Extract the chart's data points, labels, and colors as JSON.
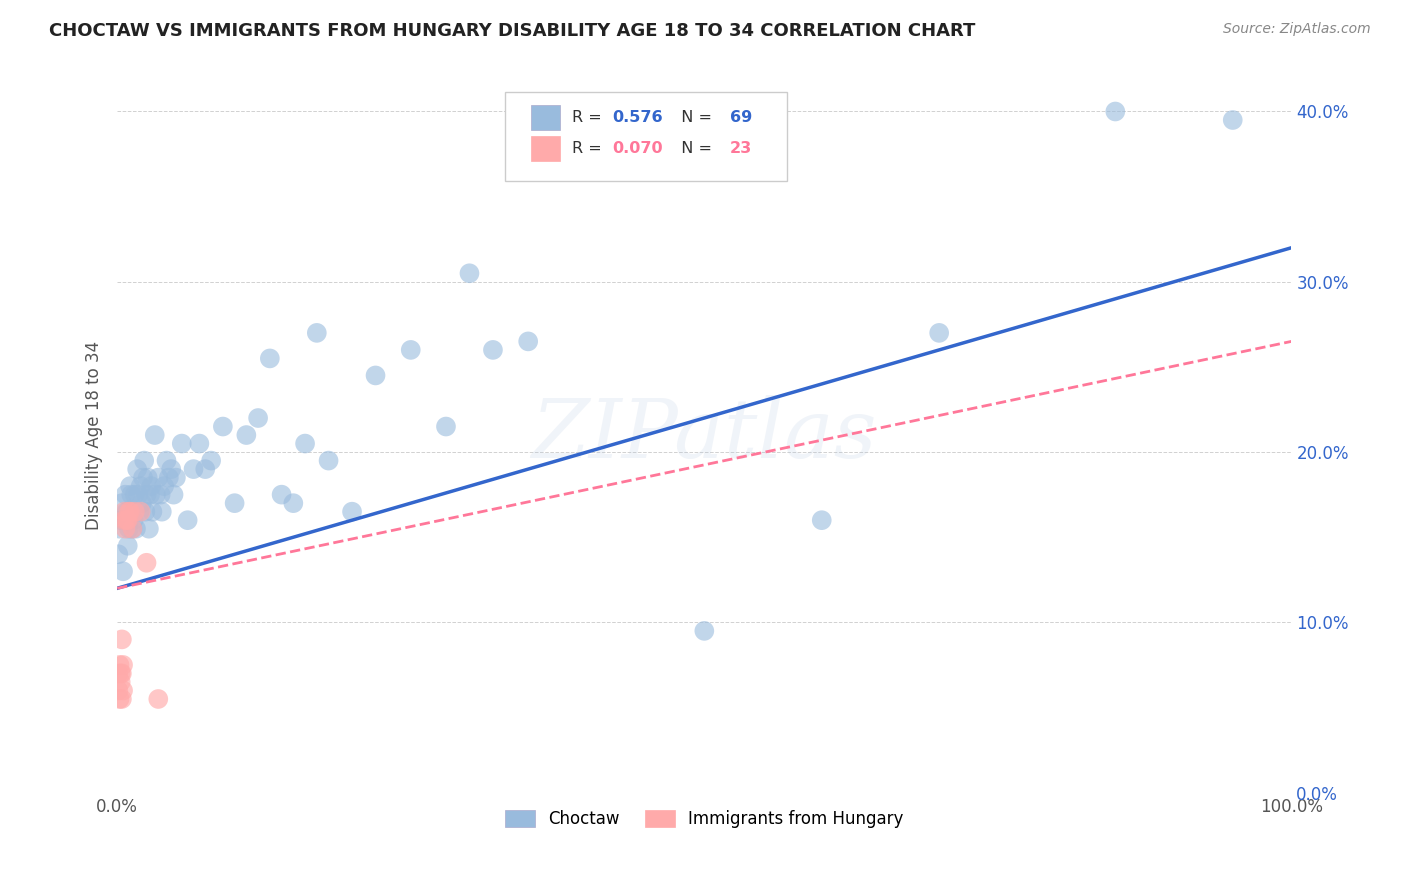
{
  "title": "CHOCTAW VS IMMIGRANTS FROM HUNGARY DISABILITY AGE 18 TO 34 CORRELATION CHART",
  "source": "Source: ZipAtlas.com",
  "ylabel_label": "Disability Age 18 to 34",
  "legend_label1": "Choctaw",
  "legend_label2": "Immigrants from Hungary",
  "r1": 0.576,
  "n1": 69,
  "r2": 0.07,
  "n2": 23,
  "blue_color": "#99BBDD",
  "pink_color": "#FFAAAA",
  "line_blue": "#3366CC",
  "line_pink": "#FF7799",
  "watermark": "ZIPatlas",
  "blue_x": [
    0.001,
    0.002,
    0.003,
    0.004,
    0.005,
    0.006,
    0.007,
    0.008,
    0.009,
    0.01,
    0.011,
    0.012,
    0.013,
    0.014,
    0.015,
    0.016,
    0.017,
    0.018,
    0.019,
    0.02,
    0.021,
    0.022,
    0.023,
    0.024,
    0.025,
    0.026,
    0.027,
    0.028,
    0.029,
    0.03,
    0.032,
    0.033,
    0.035,
    0.037,
    0.038,
    0.04,
    0.042,
    0.044,
    0.046,
    0.048,
    0.05,
    0.055,
    0.06,
    0.065,
    0.07,
    0.075,
    0.08,
    0.09,
    0.1,
    0.11,
    0.12,
    0.13,
    0.14,
    0.15,
    0.16,
    0.17,
    0.18,
    0.2,
    0.22,
    0.25,
    0.28,
    0.3,
    0.32,
    0.35,
    0.5,
    0.6,
    0.7,
    0.85,
    0.95
  ],
  "blue_y": [
    0.14,
    0.155,
    0.16,
    0.17,
    0.13,
    0.16,
    0.175,
    0.165,
    0.145,
    0.155,
    0.18,
    0.175,
    0.155,
    0.16,
    0.175,
    0.155,
    0.19,
    0.175,
    0.165,
    0.18,
    0.17,
    0.185,
    0.195,
    0.165,
    0.175,
    0.185,
    0.155,
    0.175,
    0.18,
    0.165,
    0.21,
    0.175,
    0.185,
    0.175,
    0.165,
    0.18,
    0.195,
    0.185,
    0.19,
    0.175,
    0.185,
    0.205,
    0.16,
    0.19,
    0.205,
    0.19,
    0.195,
    0.215,
    0.17,
    0.21,
    0.22,
    0.255,
    0.175,
    0.17,
    0.205,
    0.27,
    0.195,
    0.165,
    0.245,
    0.26,
    0.215,
    0.305,
    0.26,
    0.265,
    0.095,
    0.16,
    0.27,
    0.4,
    0.395
  ],
  "pink_x": [
    0.001,
    0.001,
    0.002,
    0.002,
    0.003,
    0.003,
    0.004,
    0.004,
    0.004,
    0.005,
    0.005,
    0.006,
    0.006,
    0.007,
    0.008,
    0.009,
    0.01,
    0.011,
    0.013,
    0.015,
    0.02,
    0.025,
    0.035
  ],
  "pink_y": [
    0.06,
    0.07,
    0.055,
    0.075,
    0.065,
    0.07,
    0.055,
    0.07,
    0.09,
    0.06,
    0.075,
    0.16,
    0.165,
    0.155,
    0.16,
    0.16,
    0.165,
    0.165,
    0.155,
    0.165,
    0.165,
    0.135,
    0.055
  ],
  "xlim": [
    0.0,
    1.0
  ],
  "ylim": [
    0.0,
    0.42
  ],
  "xticks": [
    0.0,
    1.0
  ],
  "xtick_labels": [
    "0.0%",
    "100.0%"
  ],
  "yticks": [
    0.0,
    0.1,
    0.2,
    0.3,
    0.4
  ],
  "ytick_labels": [
    "0.0%",
    "10.0%",
    "20.0%",
    "30.0%",
    "40.0%"
  ],
  "blue_line_x0": 0.0,
  "blue_line_y0": 0.12,
  "blue_line_x1": 1.0,
  "blue_line_y1": 0.32,
  "pink_line_x0": 0.0,
  "pink_line_y0": 0.12,
  "pink_line_x1": 1.0,
  "pink_line_y1": 0.265
}
